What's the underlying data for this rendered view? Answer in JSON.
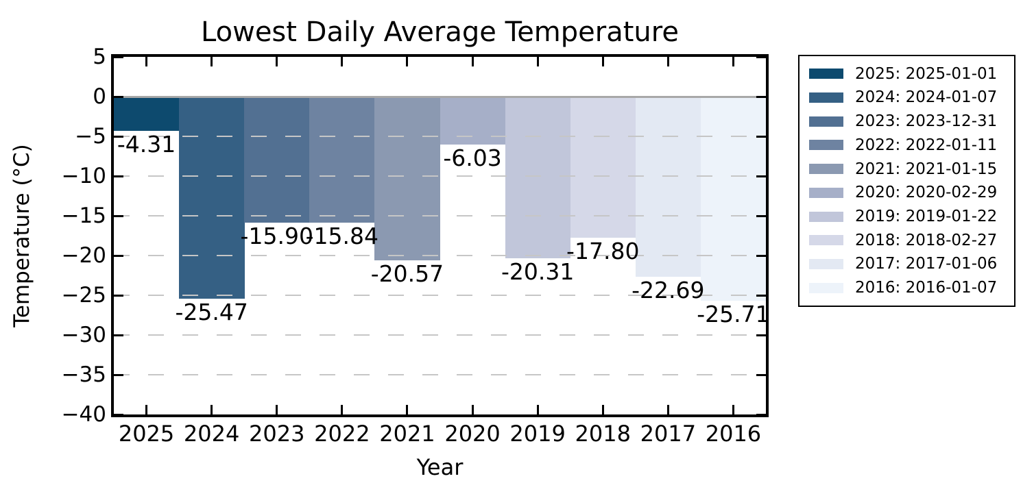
{
  "figure": {
    "title": "Lowest Daily Average Temperature",
    "xlabel": "Year",
    "ylabel": "Temperature (°C)"
  },
  "chart_data": {
    "type": "bar",
    "title": "Lowest Daily Average Temperature",
    "xlabel": "Year",
    "ylabel": "Temperature (°C)",
    "categories": [
      "2025",
      "2024",
      "2023",
      "2022",
      "2021",
      "2020",
      "2019",
      "2018",
      "2017",
      "2016"
    ],
    "values": [
      -4.31,
      -25.47,
      -15.9,
      -15.84,
      -20.57,
      -6.03,
      -20.31,
      -17.8,
      -22.69,
      -25.71
    ],
    "value_labels": [
      "-4.31",
      "-25.47",
      "-15.90",
      "-15.84",
      "-20.57",
      "-6.03",
      "-20.31",
      "-17.80",
      "-22.69",
      "-25.71"
    ],
    "bar_colors": [
      "#0d4a6e",
      "#356084",
      "#527092",
      "#6e83a1",
      "#8b99b1",
      "#a6afc8",
      "#c1c6da",
      "#d5d8e8",
      "#e3e9f3",
      "#edf3fa"
    ],
    "ylim": [
      5,
      -40
    ],
    "yticks": [
      5,
      0,
      -5,
      -10,
      -15,
      -20,
      -25,
      -30,
      -35,
      -40
    ],
    "ytick_labels": [
      "5",
      "0",
      "−5",
      "−10",
      "−15",
      "−20",
      "−25",
      "−30",
      "−35",
      "−40"
    ],
    "gridlines": [
      -5,
      -10,
      -15,
      -20,
      -25,
      -30,
      -35
    ],
    "zero_line": 0,
    "grid": true,
    "legend_position": "outside upper right",
    "legend": [
      {
        "label": "2025: 2025-01-01",
        "color": "#0d4a6e"
      },
      {
        "label": "2024: 2024-01-07",
        "color": "#356084"
      },
      {
        "label": "2023: 2023-12-31",
        "color": "#527092"
      },
      {
        "label": "2022: 2022-01-11",
        "color": "#6e83a1"
      },
      {
        "label": "2021: 2021-01-15",
        "color": "#8b99b1"
      },
      {
        "label": "2020: 2020-02-29",
        "color": "#a6afc8"
      },
      {
        "label": "2019: 2019-01-22",
        "color": "#c1c6da"
      },
      {
        "label": "2018: 2018-02-27",
        "color": "#d5d8e8"
      },
      {
        "label": "2017: 2017-01-06",
        "color": "#e3e9f3"
      },
      {
        "label": "2016: 2016-01-07",
        "color": "#edf3fa"
      }
    ],
    "colors": {
      "grid": "#c6c6c6",
      "zero_line": "#a8a8a8",
      "spine": "#000000",
      "background": "#ffffff",
      "text": "#000000"
    }
  }
}
